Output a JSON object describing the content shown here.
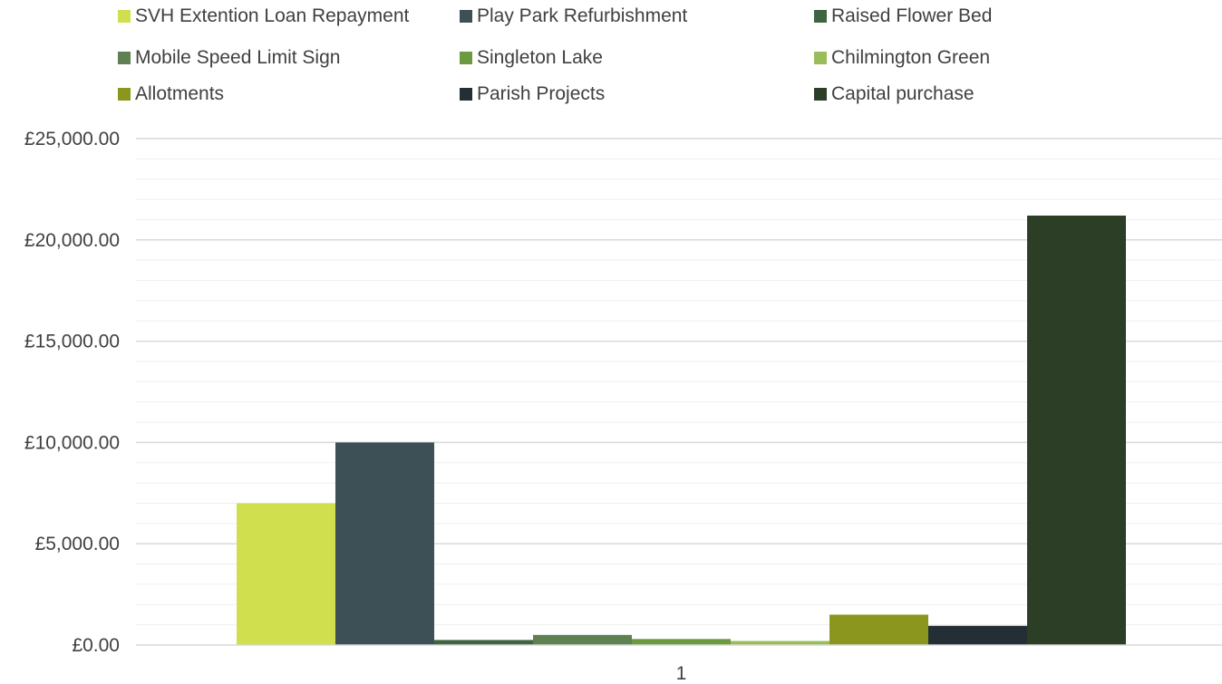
{
  "chart_data": {
    "type": "bar",
    "categories": [
      "1"
    ],
    "series": [
      {
        "name": "SVH Extention Loan Repayment",
        "values": [
          7000
        ],
        "color": "#d0df4d"
      },
      {
        "name": "Play Park Refurbishment",
        "values": [
          10000
        ],
        "color": "#3d5056"
      },
      {
        "name": "Raised Flower Bed",
        "values": [
          250
        ],
        "color": "#3f6440"
      },
      {
        "name": "Mobile Speed Limit Sign",
        "values": [
          500
        ],
        "color": "#5f8050"
      },
      {
        "name": "Singleton Lake",
        "values": [
          300
        ],
        "color": "#6b9a3f"
      },
      {
        "name": "Chilmington Green",
        "values": [
          200
        ],
        "color": "#98bd5a"
      },
      {
        "name": "Allotments",
        "values": [
          1500
        ],
        "color": "#8b961e"
      },
      {
        "name": "Parish Projects",
        "values": [
          950
        ],
        "color": "#242f35"
      },
      {
        "name": "Capital purchase",
        "values": [
          21200
        ],
        "color": "#2c3f26"
      }
    ],
    "yticks": [
      "£0.00",
      "£5,000.00",
      "£10,000.00",
      "£15,000.00",
      "£20,000.00",
      "£25,000.00"
    ],
    "ylim": [
      0,
      25000
    ],
    "grid": true,
    "legend_position": "top"
  }
}
